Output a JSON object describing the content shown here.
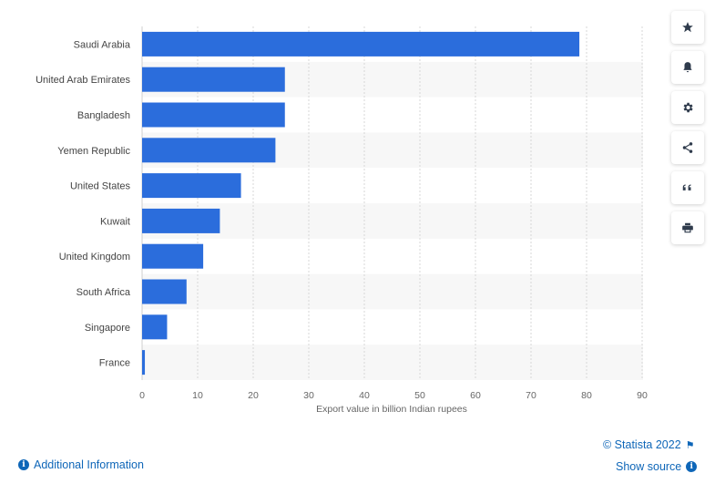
{
  "chart_data": {
    "type": "bar",
    "orientation": "horizontal",
    "categories": [
      "Saudi Arabia",
      "United Arab Emirates",
      "Bangladesh",
      "Yemen Republic",
      "United States",
      "Kuwait",
      "United Kingdom",
      "South Africa",
      "Singapore",
      "France"
    ],
    "values": [
      78.7,
      25.7,
      25.7,
      24.0,
      17.8,
      14.0,
      11.0,
      8.0,
      4.5,
      0.5
    ],
    "xlabel": "Export value in billion Indian rupees",
    "xlim": [
      0,
      90
    ],
    "xticks": [
      0,
      10,
      20,
      30,
      40,
      50,
      60,
      70,
      80,
      90
    ],
    "grid": "vertical dashed",
    "bar_color": "#2b6ddc",
    "band_color": "#f7f7f7"
  },
  "sidebar": {
    "buttons": [
      {
        "icon": "star-icon"
      },
      {
        "icon": "bell-icon"
      },
      {
        "icon": "gear-icon"
      },
      {
        "icon": "share-icon"
      },
      {
        "icon": "quote-icon"
      },
      {
        "icon": "print-icon"
      }
    ]
  },
  "footer": {
    "credit": "© Statista 2022",
    "show_source": "Show source",
    "additional_info": "Additional Information",
    "link_color": "#0e66b8"
  }
}
